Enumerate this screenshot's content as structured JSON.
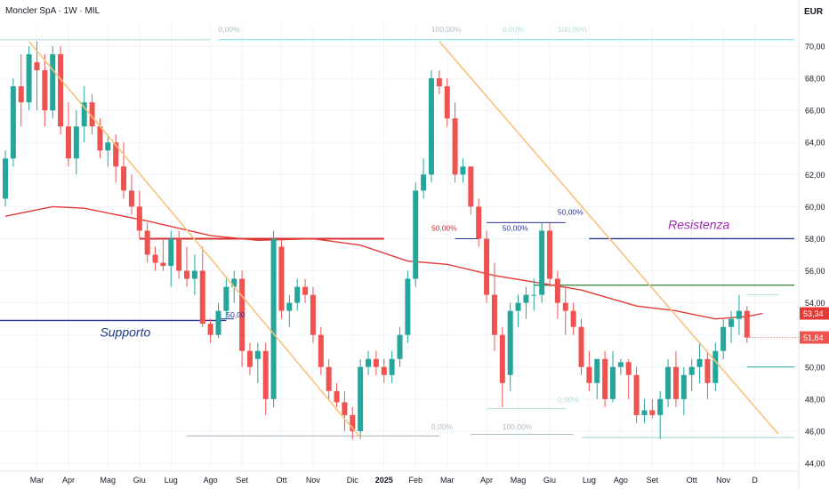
{
  "header": {
    "title": "Moncler SpA · 1W · MIL",
    "currency": "EUR"
  },
  "chart_data": {
    "type": "candlestick",
    "title": "Moncler SpA · 1W · MIL",
    "ylim": [
      44.0,
      71.5
    ],
    "y_ticks": [
      44,
      46,
      48,
      50,
      52,
      54,
      56,
      58,
      60,
      62,
      64,
      66,
      68,
      70
    ],
    "y_tick_labels": [
      "44,00",
      "46,00",
      "48,00",
      "50,00",
      "52,00",
      "54,00",
      "56,00",
      "58,00",
      "60,00",
      "62,00",
      "64,00",
      "66,00",
      "68,00",
      "70,00"
    ],
    "x_ticks": [
      {
        "label": "Mar",
        "i": 4
      },
      {
        "label": "Apr",
        "i": 8
      },
      {
        "label": "Mag",
        "i": 13
      },
      {
        "label": "Giu",
        "i": 17
      },
      {
        "label": "Lug",
        "i": 21
      },
      {
        "label": "Ago",
        "i": 26
      },
      {
        "label": "Set",
        "i": 30
      },
      {
        "label": "Ott",
        "i": 35
      },
      {
        "label": "Nov",
        "i": 39
      },
      {
        "label": "Dic",
        "i": 44
      },
      {
        "label": "2025",
        "i": 48
      },
      {
        "label": "Feb",
        "i": 52
      },
      {
        "label": "Mar",
        "i": 56
      },
      {
        "label": "Apr",
        "i": 61
      },
      {
        "label": "Mag",
        "i": 65
      },
      {
        "label": "Giu",
        "i": 69
      },
      {
        "label": "Lug",
        "i": 74
      },
      {
        "label": "Ago",
        "i": 78
      },
      {
        "label": "Set",
        "i": 82
      },
      {
        "label": "Ott",
        "i": 87
      },
      {
        "label": "Nov",
        "i": 91
      },
      {
        "label": "D",
        "i": 95
      }
    ],
    "candles": [
      [
        60.5,
        63.5,
        60.0,
        63.0
      ],
      [
        63.0,
        68.0,
        62.5,
        67.5
      ],
      [
        67.5,
        69.5,
        65.0,
        66.5
      ],
      [
        66.5,
        70.0,
        66.0,
        69.5
      ],
      [
        69.0,
        70.3,
        66.0,
        68.5
      ],
      [
        68.5,
        69.5,
        65.0,
        66.0
      ],
      [
        66.0,
        70.0,
        65.5,
        69.5
      ],
      [
        69.5,
        70.0,
        64.5,
        65.0
      ],
      [
        65.0,
        66.5,
        62.5,
        63.0
      ],
      [
        63.0,
        66.0,
        62.0,
        65.0
      ],
      [
        65.0,
        67.5,
        64.0,
        66.5
      ],
      [
        66.5,
        67.0,
        64.5,
        65.0
      ],
      [
        65.0,
        65.5,
        63.0,
        63.5
      ],
      [
        63.5,
        64.5,
        62.5,
        64.0
      ],
      [
        64.0,
        64.5,
        61.5,
        62.5
      ],
      [
        62.5,
        64.0,
        60.5,
        61.0
      ],
      [
        61.0,
        62.0,
        59.5,
        60.0
      ],
      [
        60.0,
        61.0,
        58.0,
        58.5
      ],
      [
        58.5,
        59.0,
        56.5,
        57.0
      ],
      [
        57.0,
        57.5,
        56.0,
        56.5
      ],
      [
        56.5,
        58.0,
        56.0,
        56.3
      ],
      [
        56.3,
        58.5,
        55.0,
        58.0
      ],
      [
        58.0,
        58.5,
        55.5,
        56.0
      ],
      [
        56.0,
        57.5,
        55.0,
        55.5
      ],
      [
        55.5,
        57.0,
        54.5,
        56.0
      ],
      [
        56.0,
        57.5,
        52.5,
        52.7
      ],
      [
        52.7,
        53.0,
        51.5,
        52.0
      ],
      [
        52.0,
        54.0,
        51.8,
        53.5
      ],
      [
        53.5,
        55.5,
        53.0,
        55.0
      ],
      [
        55.0,
        56.0,
        54.0,
        55.5
      ],
      [
        55.5,
        56.0,
        50.0,
        51.0
      ],
      [
        51.0,
        51.5,
        49.5,
        50.0
      ],
      [
        50.5,
        51.5,
        49.0,
        51.0
      ],
      [
        51.0,
        51.5,
        47.0,
        48.0
      ],
      [
        48.0,
        58.5,
        47.5,
        58.0
      ],
      [
        57.5,
        58.0,
        53.0,
        53.5
      ],
      [
        53.5,
        54.5,
        52.5,
        54.0
      ],
      [
        54.0,
        55.5,
        53.5,
        55.0
      ],
      [
        55.0,
        55.5,
        54.0,
        54.5
      ],
      [
        54.5,
        55.0,
        51.5,
        52.0
      ],
      [
        52.0,
        52.5,
        49.5,
        50.0
      ],
      [
        50.0,
        50.5,
        48.0,
        48.5
      ],
      [
        48.5,
        49.0,
        47.5,
        47.8
      ],
      [
        47.8,
        48.5,
        46.0,
        47.0
      ],
      [
        47.0,
        47.5,
        45.5,
        46.0
      ],
      [
        46.0,
        50.5,
        45.5,
        50.0
      ],
      [
        50.0,
        51.0,
        49.5,
        50.5
      ],
      [
        50.5,
        51.0,
        49.5,
        50.0
      ],
      [
        50.0,
        50.5,
        49.0,
        49.5
      ],
      [
        49.5,
        51.0,
        49.0,
        50.5
      ],
      [
        50.5,
        52.5,
        50.0,
        52.0
      ],
      [
        52.0,
        56.0,
        51.5,
        55.5
      ],
      [
        55.5,
        61.5,
        55.0,
        61.0
      ],
      [
        61.0,
        63.0,
        60.5,
        62.0
      ],
      [
        62.0,
        68.5,
        61.5,
        68.0
      ],
      [
        68.0,
        68.5,
        67.0,
        67.5
      ],
      [
        67.5,
        68.0,
        65.0,
        65.5
      ],
      [
        65.5,
        66.5,
        61.5,
        62.0
      ],
      [
        62.0,
        63.0,
        61.5,
        62.5
      ],
      [
        62.5,
        62.5,
        59.5,
        60.0
      ],
      [
        60.0,
        60.5,
        57.5,
        58.0
      ],
      [
        58.0,
        58.5,
        54.0,
        54.5
      ],
      [
        54.5,
        56.5,
        51.0,
        52.0
      ],
      [
        52.0,
        52.5,
        47.5,
        49.0
      ],
      [
        49.5,
        54.0,
        48.5,
        53.5
      ],
      [
        53.5,
        54.5,
        52.5,
        54.0
      ],
      [
        54.0,
        55.0,
        53.0,
        54.5
      ],
      [
        54.5,
        55.5,
        53.5,
        54.5
      ],
      [
        54.5,
        59.0,
        54.0,
        58.5
      ],
      [
        58.5,
        59.0,
        55.0,
        55.5
      ],
      [
        55.5,
        56.0,
        53.0,
        54.0
      ],
      [
        54.0,
        55.0,
        52.0,
        53.5
      ],
      [
        53.5,
        54.0,
        52.0,
        52.5
      ],
      [
        52.5,
        53.0,
        49.5,
        50.0
      ],
      [
        50.0,
        51.0,
        48.5,
        49.0
      ],
      [
        49.0,
        50.5,
        48.0,
        50.5
      ],
      [
        50.5,
        51.0,
        47.5,
        48.0
      ],
      [
        48.0,
        51.0,
        47.8,
        50.0
      ],
      [
        50.0,
        50.5,
        49.5,
        50.3
      ],
      [
        50.3,
        50.5,
        48.0,
        49.5
      ],
      [
        49.5,
        50.0,
        46.5,
        47.0
      ],
      [
        47.0,
        48.0,
        46.5,
        47.3
      ],
      [
        47.3,
        48.0,
        46.8,
        47.0
      ],
      [
        47.0,
        48.5,
        45.5,
        48.0
      ],
      [
        48.0,
        50.5,
        47.5,
        50.0
      ],
      [
        50.0,
        51.0,
        47.5,
        48.0
      ],
      [
        48.0,
        50.0,
        47.0,
        49.5
      ],
      [
        49.5,
        50.5,
        48.5,
        50.0
      ],
      [
        50.0,
        51.5,
        49.0,
        50.5
      ],
      [
        50.5,
        51.0,
        48.0,
        49.0
      ],
      [
        49.0,
        51.5,
        48.5,
        51.0
      ],
      [
        51.0,
        53.0,
        50.5,
        52.5
      ],
      [
        52.5,
        53.5,
        51.5,
        53.0
      ],
      [
        53.0,
        54.5,
        52.0,
        53.5
      ],
      [
        53.5,
        53.8,
        51.5,
        51.84
      ]
    ],
    "moving_average": [
      [
        0,
        59.4
      ],
      [
        6,
        60.0
      ],
      [
        10,
        59.9
      ],
      [
        18,
        59.1
      ],
      [
        26,
        58.2
      ],
      [
        32,
        57.9
      ],
      [
        39,
        58.0
      ],
      [
        45,
        57.6
      ],
      [
        51,
        56.6
      ],
      [
        56,
        56.4
      ],
      [
        62,
        55.7
      ],
      [
        67,
        55.3
      ],
      [
        73,
        54.8
      ],
      [
        80,
        53.8
      ],
      [
        85,
        53.5
      ],
      [
        90,
        53.0
      ],
      [
        94,
        53.15
      ],
      [
        96,
        53.34
      ]
    ],
    "current_price": 51.84,
    "current_price_label": "51,84",
    "ma_price": 53.34,
    "ma_price_label": "53,34",
    "trendlines": [
      {
        "from": [
          3,
          70.3
        ],
        "to": [
          45,
          45.6
        ]
      },
      {
        "from": [
          55,
          70.3
        ],
        "to": [
          98,
          45.8
        ]
      }
    ],
    "horizontal_levels": [
      {
        "name": "red-resistance",
        "y": 58.0,
        "from": 17,
        "to": 48,
        "color": "#d32f2f",
        "width": 2
      },
      {
        "name": "navy-resistance",
        "y": 58.0,
        "from": 74,
        "to": 100,
        "color": "#283593",
        "width": 1.4
      },
      {
        "name": "green-level",
        "y": 55.1,
        "from": 67,
        "to": 100,
        "color": "#2e7d32",
        "width": 1.2
      },
      {
        "name": "support",
        "y": 52.9,
        "from": -1,
        "to": 28,
        "color": "#283593",
        "width": 1.4
      },
      {
        "name": "teal-level",
        "y": 50.0,
        "from": 94,
        "to": 100,
        "color": "#4db6ac",
        "width": 1.2
      },
      {
        "name": "fib-top-1",
        "y": 70.4,
        "from": -1,
        "to": 26,
        "color": "#b2dfdb",
        "width": 1
      },
      {
        "name": "fib-top-2",
        "y": 70.4,
        "from": 27,
        "to": 100,
        "color": "#80deea",
        "width": 1
      },
      {
        "name": "fib-left-mid",
        "y": 53.0,
        "from": 27,
        "to": 29,
        "color": "#283593",
        "width": 1
      },
      {
        "name": "fib-mid-1",
        "y": 58.0,
        "from": 57,
        "to": 60,
        "color": "#283593",
        "width": 1
      },
      {
        "name": "fib-mid-2",
        "y": 59.0,
        "from": 61,
        "to": 71,
        "color": "#283593",
        "width": 1
      },
      {
        "name": "fib-bottom-1",
        "y": 45.7,
        "from": 23,
        "to": 55,
        "color": "#b0bec5",
        "width": 1.2
      },
      {
        "name": "fib-bottom-2",
        "y": 45.6,
        "from": 73,
        "to": 100,
        "color": "#b2dfdb",
        "width": 1.2
      },
      {
        "name": "fib-bottom-3",
        "y": 47.4,
        "from": 61,
        "to": 71,
        "color": "#b2dfdb",
        "width": 1
      },
      {
        "name": "fib-bottom-4",
        "y": 45.8,
        "from": 59,
        "to": 72,
        "color": "#b0bec5",
        "width": 1
      },
      {
        "name": "fib-right-up",
        "y": 54.5,
        "from": 94,
        "to": 98,
        "color": "#b2dfdb",
        "width": 1
      }
    ],
    "annotations": [
      {
        "name": "supporto-label",
        "text": "Supporto",
        "x": 12,
        "y": 51.9,
        "color": "#1e3a8a",
        "size": 14,
        "italic": true,
        "bold": false
      },
      {
        "name": "resistenza-label",
        "text": "Resistenza",
        "x": 84,
        "y": 58.6,
        "color": "#9c27b0",
        "size": 14,
        "italic": true,
        "bold": false
      },
      {
        "name": "fib-50-left",
        "text": "50,00",
        "x": 28,
        "y": 53.1,
        "color": "#283593",
        "size": 8.5
      },
      {
        "name": "fib-50-red",
        "text": "50,00%",
        "x": 54,
        "y": 58.5,
        "color": "#d32f2f",
        "size": 8.5
      },
      {
        "name": "fib-50-navy",
        "text": "50,00%",
        "x": 63,
        "y": 58.5,
        "color": "#283593",
        "size": 8.5
      },
      {
        "name": "fib-50-top",
        "text": "50,00%",
        "x": 70,
        "y": 59.5,
        "color": "#283593",
        "size": 8.5
      },
      {
        "name": "fib-0-top-left",
        "text": "0,00%",
        "x": 27,
        "y": 70.9,
        "color": "#b0bec5",
        "size": 8.5
      },
      {
        "name": "fib-100-top",
        "text": "100,00%",
        "x": 54,
        "y": 70.9,
        "color": "#b0bec5",
        "size": 8.5
      },
      {
        "name": "fib-0-top-mid",
        "text": "0,00%",
        "x": 63,
        "y": 70.9,
        "color": "#b2dfdb",
        "size": 8.5
      },
      {
        "name": "fib-100-top-right",
        "text": "100,00%",
        "x": 70,
        "y": 70.9,
        "color": "#b2dfdb",
        "size": 8.5
      },
      {
        "name": "fib-0-bottom-mid",
        "text": "0,00%",
        "x": 54,
        "y": 46.1,
        "color": "#b0bec5",
        "size": 8.5
      },
      {
        "name": "fib-100-bottom",
        "text": "100,00%",
        "x": 63,
        "y": 46.1,
        "color": "#b0bec5",
        "size": 8.5
      },
      {
        "name": "fib-0-bottom-right",
        "text": "0,00%",
        "x": 70,
        "y": 47.8,
        "color": "#b2dfdb",
        "size": 8.5
      }
    ],
    "colors": {
      "up": "#26a69a",
      "down": "#ef5350",
      "ma": "#e53935",
      "trend": "#f7c27a",
      "grid": "#f0f3fa",
      "axis_text": "#131722"
    },
    "grid": true
  }
}
